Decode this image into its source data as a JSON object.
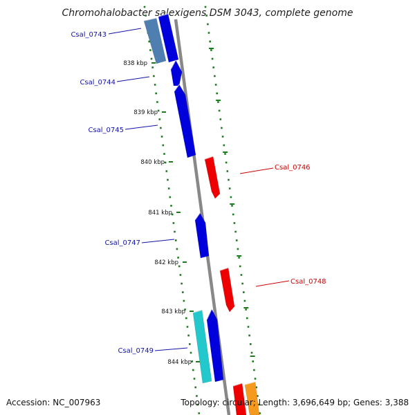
{
  "title": "Chromohalobacter salexigens DSM 3043, complete genome",
  "accession": "Accession: NC_007963",
  "summary": "Topology: circular; Length: 3,696,649 bp; Genes: 3,388",
  "colors": {
    "forward": "#0000dd",
    "reverse": "#ee0000",
    "steel": "#4f7fb0",
    "cyan": "#22c8cc",
    "orange": "#f59a1e",
    "label_forward": "#1111aa",
    "label_reverse": "#cc0000",
    "backbone": "#8a8a8a",
    "dots": "#1f7a1f"
  },
  "ticks": [
    "838 kbp",
    "839 kbp",
    "840 kbp",
    "841 kbp",
    "842 kbp",
    "843 kbp",
    "844 kbp"
  ],
  "genes": [
    {
      "name": "Csal_0743",
      "strand": "forward",
      "color": "steel",
      "labeled": true
    },
    {
      "name": "",
      "strand": "forward",
      "color": "forward",
      "labeled": false
    },
    {
      "name": "Csal_0744",
      "strand": "forward",
      "color": "forward",
      "labeled": true
    },
    {
      "name": "Csal_0745",
      "strand": "forward",
      "color": "forward",
      "labeled": true
    },
    {
      "name": "Csal_0746",
      "strand": "reverse",
      "color": "reverse",
      "labeled": true
    },
    {
      "name": "Csal_0747",
      "strand": "forward",
      "color": "forward",
      "labeled": true
    },
    {
      "name": "Csal_0748",
      "strand": "reverse",
      "color": "reverse",
      "labeled": true
    },
    {
      "name": "Csal_0749",
      "strand": "forward",
      "color": "cyan",
      "labeled": true
    },
    {
      "name": "",
      "strand": "forward",
      "color": "forward",
      "labeled": false
    },
    {
      "name": "",
      "strand": "reverse",
      "color": "reverse",
      "labeled": false
    },
    {
      "name": "",
      "strand": "reverse",
      "color": "orange",
      "labeled": false
    }
  ]
}
